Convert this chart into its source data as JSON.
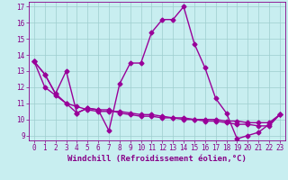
{
  "xlabel": "Windchill (Refroidissement éolien,°C)",
  "background_color": "#c8eef0",
  "line_color": "#990099",
  "xlim": [
    -0.5,
    23.5
  ],
  "ylim": [
    8.7,
    17.3
  ],
  "yticks": [
    9,
    10,
    11,
    12,
    13,
    14,
    15,
    16,
    17
  ],
  "xticks": [
    0,
    1,
    2,
    3,
    4,
    5,
    6,
    7,
    8,
    9,
    10,
    11,
    12,
    13,
    14,
    15,
    16,
    17,
    18,
    19,
    20,
    21,
    22,
    23
  ],
  "series1_x": [
    0,
    1,
    2,
    3,
    4,
    5,
    6,
    7,
    8,
    9,
    10,
    11,
    12,
    13,
    14,
    15,
    16,
    17,
    18,
    19,
    20,
    21,
    22,
    23
  ],
  "series1_y": [
    13.6,
    12.8,
    11.6,
    13.0,
    10.4,
    10.7,
    10.6,
    9.3,
    12.2,
    13.5,
    13.5,
    15.4,
    16.2,
    16.2,
    17.0,
    14.7,
    13.2,
    11.3,
    10.4,
    8.8,
    9.0,
    9.2,
    9.7,
    10.3
  ],
  "series2_x": [
    0,
    1,
    2,
    3,
    4,
    5,
    6,
    7,
    8,
    9,
    10,
    11,
    12,
    13,
    14,
    15,
    16,
    17,
    18,
    19,
    20,
    21,
    22,
    23
  ],
  "series2_y": [
    13.6,
    12.8,
    11.6,
    11.0,
    10.8,
    10.6,
    10.5,
    10.5,
    10.5,
    10.4,
    10.3,
    10.3,
    10.2,
    10.1,
    10.1,
    10.0,
    10.0,
    10.0,
    9.9,
    9.9,
    9.8,
    9.8,
    9.8,
    10.3
  ],
  "series3_x": [
    0,
    1,
    2,
    3,
    4,
    5,
    6,
    7,
    8,
    9,
    10,
    11,
    12,
    13,
    14,
    15,
    16,
    17,
    18,
    19,
    20,
    21,
    22,
    23
  ],
  "series3_y": [
    13.6,
    12.0,
    11.5,
    11.0,
    10.4,
    10.7,
    10.6,
    10.6,
    10.4,
    10.3,
    10.2,
    10.2,
    10.1,
    10.1,
    10.0,
    10.0,
    9.9,
    9.9,
    9.8,
    9.7,
    9.7,
    9.6,
    9.6,
    10.3
  ],
  "grid_color": "#9ecece",
  "marker": "D",
  "markersize": 2.5,
  "linewidth": 1.0,
  "xlabel_fontsize": 6.5,
  "tick_fontsize": 5.5,
  "tick_color": "#880088"
}
